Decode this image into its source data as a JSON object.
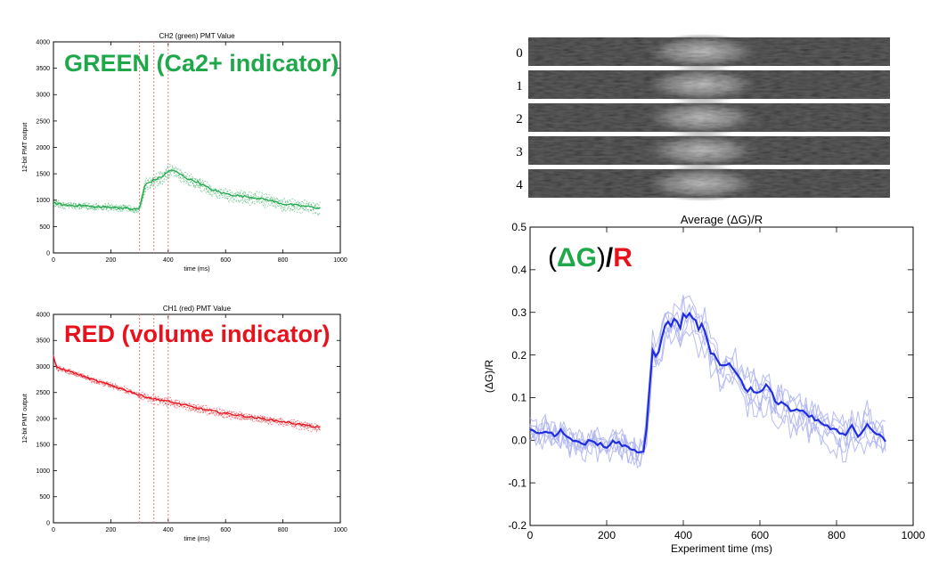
{
  "colors": {
    "green": "#1fa84a",
    "red": "#e8121c",
    "blue": "#1f2fe0",
    "blue_light": "#aab0f0",
    "marker": "#f08080",
    "axis": "#000000"
  },
  "overlays": {
    "green_label": "GREEN (Ca2+ indicator)",
    "red_label": "RED (volume indicator)",
    "ratio_open": "(",
    "ratio_dg": "ΔG",
    "ratio_close": ")",
    "ratio_slash": "/",
    "ratio_r": "R"
  },
  "strips": {
    "labels": [
      "0",
      "1",
      "2",
      "3",
      "4"
    ]
  },
  "chart_data": [
    {
      "id": "green",
      "type": "line",
      "title": "CH2 (green) PMT Value",
      "xlabel": "time (ms)",
      "ylabel": "12-bit PMT output",
      "xlim": [
        0,
        1000
      ],
      "ylim": [
        0,
        4000
      ],
      "xticks": [
        0,
        200,
        400,
        600,
        800,
        1000
      ],
      "yticks": [
        0,
        500,
        1000,
        1500,
        2000,
        2500,
        3000,
        3500,
        4000
      ],
      "vlines": [
        300,
        350,
        400
      ],
      "x": [
        0,
        50,
        100,
        150,
        200,
        250,
        290,
        300,
        320,
        350,
        380,
        410,
        440,
        470,
        500,
        550,
        600,
        650,
        700,
        750,
        800,
        850,
        900,
        930
      ],
      "series": [
        {
          "values": [
            950,
            900,
            900,
            870,
            870,
            850,
            820,
            850,
            1300,
            1380,
            1450,
            1580,
            1500,
            1400,
            1350,
            1200,
            1120,
            1080,
            1050,
            1000,
            930,
            900,
            870,
            850
          ]
        }
      ]
    },
    {
      "id": "red",
      "type": "line",
      "title": "CH1 (red) PMT Value",
      "xlabel": "time (ms)",
      "ylabel": "12-bit PMT output",
      "xlim": [
        0,
        1000
      ],
      "ylim": [
        0,
        4000
      ],
      "xticks": [
        0,
        200,
        400,
        600,
        800,
        1000
      ],
      "yticks": [
        0,
        500,
        1000,
        1500,
        2000,
        2500,
        3000,
        3500,
        4000
      ],
      "vlines": [
        300,
        350,
        400
      ],
      "x": [
        0,
        10,
        50,
        100,
        150,
        200,
        250,
        300,
        350,
        400,
        450,
        500,
        550,
        600,
        650,
        700,
        750,
        800,
        850,
        900,
        930
      ],
      "series": [
        {
          "values": [
            3200,
            2980,
            2920,
            2820,
            2720,
            2640,
            2550,
            2450,
            2380,
            2330,
            2270,
            2200,
            2150,
            2100,
            2060,
            2020,
            1980,
            1940,
            1900,
            1850,
            1820
          ]
        }
      ]
    },
    {
      "id": "ratio",
      "type": "line",
      "title": "Average (ΔG)/R",
      "xlabel": "Experiment time (ms)",
      "ylabel": "(ΔG)/R",
      "xlim": [
        0,
        1000
      ],
      "ylim": [
        -0.2,
        0.5
      ],
      "xticks": [
        0,
        200,
        400,
        600,
        800,
        1000
      ],
      "yticks": [
        -0.2,
        -0.1,
        0.0,
        0.1,
        0.2,
        0.3,
        0.4,
        0.5
      ],
      "x": [
        0,
        20,
        40,
        60,
        80,
        100,
        120,
        140,
        160,
        180,
        200,
        220,
        240,
        260,
        280,
        300,
        310,
        320,
        330,
        340,
        350,
        360,
        370,
        380,
        390,
        400,
        410,
        420,
        430,
        440,
        450,
        460,
        470,
        480,
        490,
        500,
        520,
        540,
        560,
        580,
        600,
        620,
        640,
        660,
        680,
        700,
        720,
        740,
        760,
        780,
        800,
        820,
        840,
        860,
        880,
        900,
        920,
        935
      ],
      "series": [
        {
          "values": [
            0.03,
            0.01,
            0.02,
            0.01,
            0.02,
            0.0,
            0.0,
            -0.01,
            0.0,
            -0.01,
            -0.02,
            0.0,
            -0.01,
            -0.02,
            -0.03,
            -0.02,
            0.1,
            0.21,
            0.2,
            0.22,
            0.26,
            0.28,
            0.27,
            0.29,
            0.26,
            0.3,
            0.29,
            0.3,
            0.28,
            0.26,
            0.27,
            0.25,
            0.21,
            0.2,
            0.19,
            0.17,
            0.18,
            0.16,
            0.12,
            0.12,
            0.11,
            0.13,
            0.09,
            0.09,
            0.07,
            0.07,
            0.06,
            0.05,
            0.04,
            0.03,
            0.02,
            0.01,
            0.03,
            0.01,
            0.04,
            0.02,
            0.01,
            -0.01
          ]
        }
      ]
    }
  ]
}
